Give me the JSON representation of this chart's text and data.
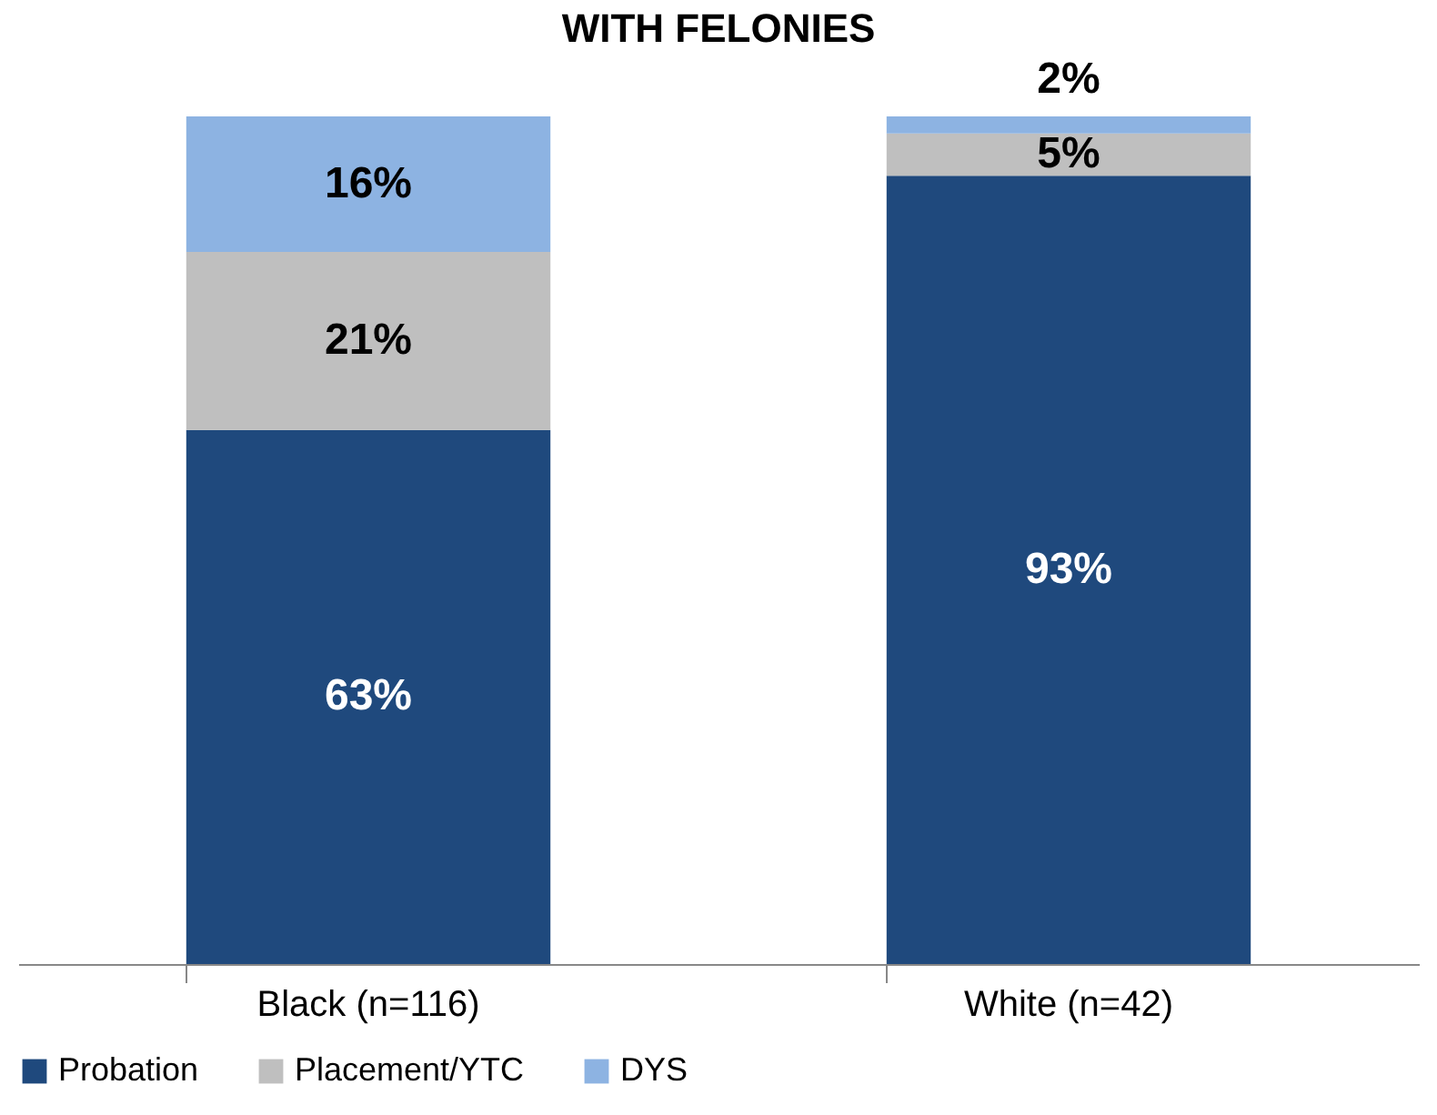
{
  "chart_data": {
    "type": "bar",
    "title": "WITH FELONIES",
    "stacked": true,
    "categories": [
      "Black (n=116)",
      "White (n=42)"
    ],
    "series": [
      {
        "name": "Probation",
        "color": "#1f497d",
        "values": [
          63,
          93
        ],
        "value_labels": [
          "63%",
          "93%"
        ]
      },
      {
        "name": "Placement/YTC",
        "color": "#bfbfbf",
        "values": [
          21,
          5
        ],
        "value_labels": [
          "21%",
          "5%"
        ]
      },
      {
        "name": "DYS",
        "color": "#8db3e2",
        "values": [
          16,
          2
        ],
        "value_labels": [
          "16%",
          "2%"
        ]
      }
    ],
    "grid": false,
    "legend": "bottom",
    "tick_labels": "x"
  }
}
